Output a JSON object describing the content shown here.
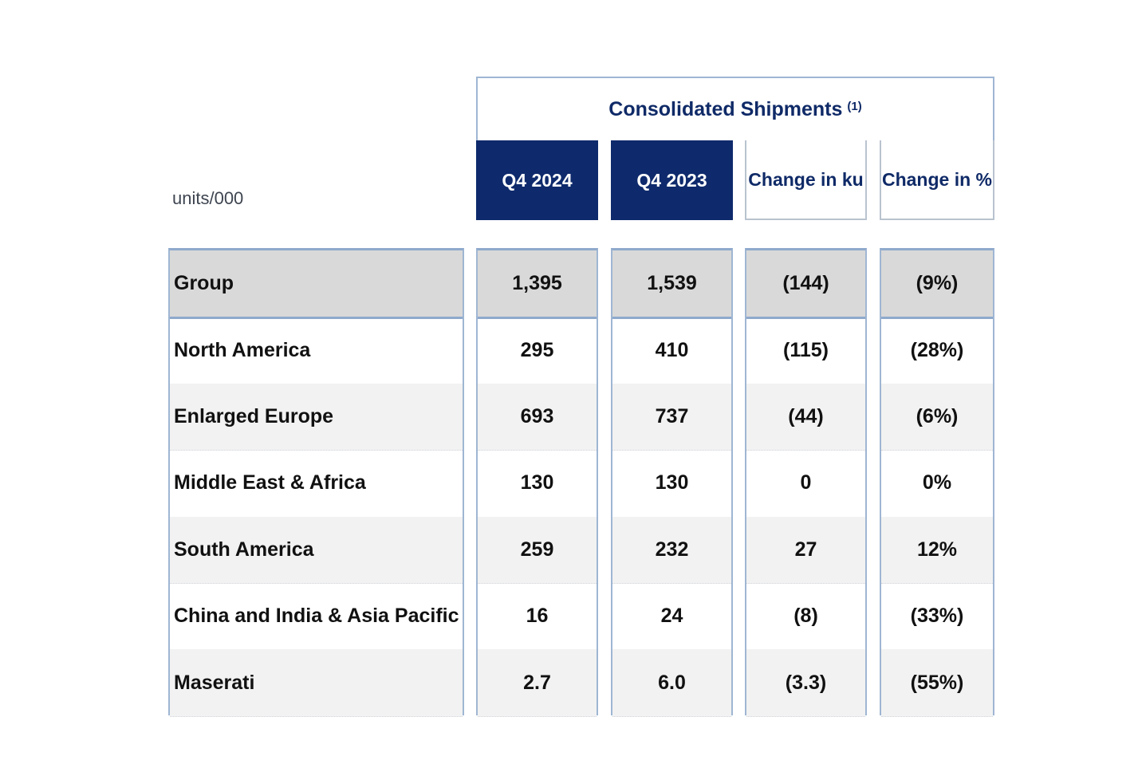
{
  "header": {
    "group_title": "Consolidated Shipments",
    "footnote": "(1)",
    "units": "units/000",
    "columns": [
      "Q4 2024",
      "Q4 2023",
      "Change in ku",
      "Change in %"
    ]
  },
  "rows": [
    {
      "label": "Group",
      "q4_2024": "1,395",
      "q4_2023": "1,539",
      "change_ku": "(144)",
      "change_pct": "(9%)"
    },
    {
      "label": "North America",
      "q4_2024": "295",
      "q4_2023": "410",
      "change_ku": "(115)",
      "change_pct": "(28%)"
    },
    {
      "label": "Enlarged Europe",
      "q4_2024": "693",
      "q4_2023": "737",
      "change_ku": "(44)",
      "change_pct": "(6%)"
    },
    {
      "label": "Middle East & Africa",
      "q4_2024": "130",
      "q4_2023": "130",
      "change_ku": "0",
      "change_pct": "0%"
    },
    {
      "label": "South America",
      "q4_2024": "259",
      "q4_2023": "232",
      "change_ku": "27",
      "change_pct": "12%"
    },
    {
      "label": "China and India & Asia Pacific",
      "q4_2024": "16",
      "q4_2023": "24",
      "change_ku": "(8)",
      "change_pct": "(33%)"
    },
    {
      "label": "Maserati",
      "q4_2024": "2.7",
      "q4_2023": "6.0",
      "change_ku": "(3.3)",
      "change_pct": "(55%)"
    }
  ]
}
